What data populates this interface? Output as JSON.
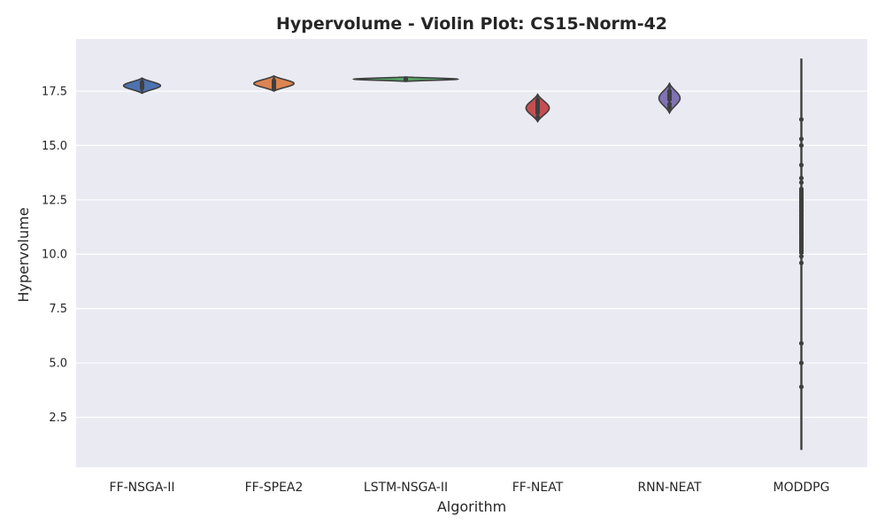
{
  "chart_data": {
    "type": "violin",
    "title": "Hypervolume - Violin Plot: CS15-Norm-42",
    "xlabel": "Algorithm",
    "ylabel": "Hypervolume",
    "ylim": [
      0.2,
      19.9
    ],
    "yticks": [
      "2.5",
      "5.0",
      "7.5",
      "10.0",
      "12.5",
      "15.0",
      "17.5"
    ],
    "grid": true,
    "categories": [
      "FF-NSGA-II",
      "FF-SPEA2",
      "LSTM-NSGA-II",
      "FF-NEAT",
      "RNN-NEAT",
      "MODDPG"
    ],
    "series": [
      {
        "color": "#4c72b0",
        "min": 17.4,
        "max": 18.1,
        "q1": 17.65,
        "median": 17.78,
        "q3": 17.9,
        "width_scale": 0.35,
        "points": [
          17.65,
          17.75,
          17.82,
          17.9
        ]
      },
      {
        "color": "#dd8452",
        "min": 17.5,
        "max": 18.2,
        "q1": 17.6,
        "median": 17.72,
        "q3": 17.95,
        "width_scale": 0.38,
        "points": [
          17.6,
          17.72,
          17.85,
          17.98
        ]
      },
      {
        "color": "#55a868",
        "min": 17.95,
        "max": 18.15,
        "q1": 18.0,
        "median": 18.05,
        "q3": 18.08,
        "width_scale": 0.98,
        "points": [
          18.02,
          18.05,
          18.08
        ]
      },
      {
        "color": "#c44e52",
        "min": 16.1,
        "max": 17.35,
        "q1": 16.55,
        "median": 16.85,
        "q3": 17.05,
        "width_scale": 0.22,
        "points": [
          16.3,
          16.5,
          16.7,
          16.85,
          17.0,
          17.1
        ]
      },
      {
        "color": "#8172b3",
        "min": 16.5,
        "max": 17.85,
        "q1": 17.05,
        "median": 17.35,
        "q3": 17.5,
        "width_scale": 0.2,
        "points": [
          16.75,
          16.9,
          17.2,
          17.35,
          17.5
        ]
      },
      {
        "color": "#937860",
        "min": 1.0,
        "max": 19.0,
        "q1": 10.0,
        "median": 12.0,
        "q3": 13.0,
        "width_scale": 0.0,
        "points": [
          3.9,
          5.0,
          5.9,
          9.6,
          9.9,
          11.0,
          11.2,
          11.4,
          11.8,
          12.0,
          12.2,
          12.4,
          12.7,
          13.0,
          13.3,
          13.5,
          14.1,
          15.0,
          15.3,
          16.2
        ]
      }
    ]
  }
}
